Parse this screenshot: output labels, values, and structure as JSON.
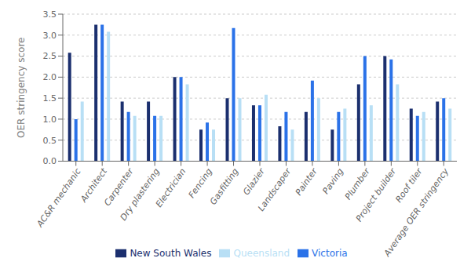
{
  "chart_data": {
    "type": "bar",
    "categories": [
      "AC&R mechanic",
      "Architect",
      "Carpenter",
      "Dry plastering",
      "Electrician",
      "Fencing",
      "Gasfitting",
      "Glazier",
      "Landscaper",
      "Painter",
      "Paving",
      "Plumber",
      "Project builder",
      "Roof tiler",
      "Average OER stringency"
    ],
    "series": [
      {
        "name": "New South Wales",
        "color": "#1b2f6e",
        "values": [
          2.58,
          3.25,
          1.42,
          1.42,
          2.0,
          0.75,
          1.5,
          1.33,
          0.83,
          1.17,
          0.75,
          1.83,
          2.5,
          1.25,
          1.42
        ]
      },
      {
        "name": "Victoria",
        "color": "#2b72e8",
        "values": [
          1.0,
          3.25,
          1.17,
          1.08,
          2.0,
          0.92,
          3.17,
          1.33,
          1.17,
          1.92,
          1.17,
          2.5,
          2.42,
          1.08,
          1.5
        ]
      },
      {
        "name": "Queensland",
        "color": "#b8dff5",
        "values": [
          1.42,
          3.08,
          1.08,
          1.08,
          1.83,
          0.75,
          1.5,
          1.58,
          0.75,
          1.5,
          1.25,
          1.33,
          1.83,
          1.17,
          1.25
        ]
      }
    ],
    "ylabel": "OER stringency score",
    "ylim": [
      0,
      3.5
    ],
    "yticks": [
      {
        "value": 0,
        "label": "0.0"
      },
      0.5,
      {
        "value": 1,
        "label": "1.0"
      },
      1.5,
      {
        "value": 2,
        "label": "2.0"
      },
      2.5,
      {
        "value": 3,
        "label": "3.0"
      },
      3.5
    ],
    "grid": true,
    "legend": "bottom"
  }
}
